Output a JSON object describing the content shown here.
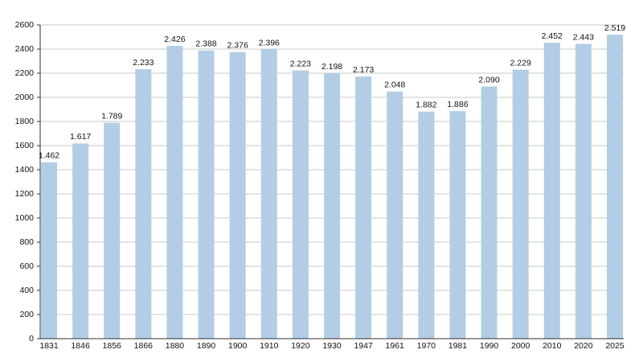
{
  "chart_data": {
    "type": "bar",
    "categories": [
      "1831",
      "1846",
      "1856",
      "1866",
      "1880",
      "1890",
      "1900",
      "1910",
      "1920",
      "1930",
      "1947",
      "1961",
      "1970",
      "1981",
      "1990",
      "2000",
      "2010",
      "2020",
      "2025"
    ],
    "values": [
      1462,
      1617,
      1789,
      2233,
      2426,
      2388,
      2376,
      2396,
      2223,
      2198,
      2173,
      2048,
      1882,
      1886,
      2090,
      2229,
      2452,
      2443,
      2519
    ],
    "value_labels": [
      "1.462",
      "1.617",
      "1.789",
      "2.233",
      "2.426",
      "2.388",
      "2.376",
      "2.396",
      "2.223",
      "2.198",
      "2.173",
      "2.048",
      "1.882",
      "1.886",
      "2.090",
      "2.229",
      "2.452",
      "2.443",
      "2.519"
    ],
    "color": "#b3cde6",
    "ylim": [
      0,
      2600
    ],
    "yticks": [
      0,
      200,
      400,
      600,
      800,
      1000,
      1200,
      1400,
      1600,
      1800,
      2000,
      2200,
      2400,
      2600
    ],
    "grid": true
  }
}
